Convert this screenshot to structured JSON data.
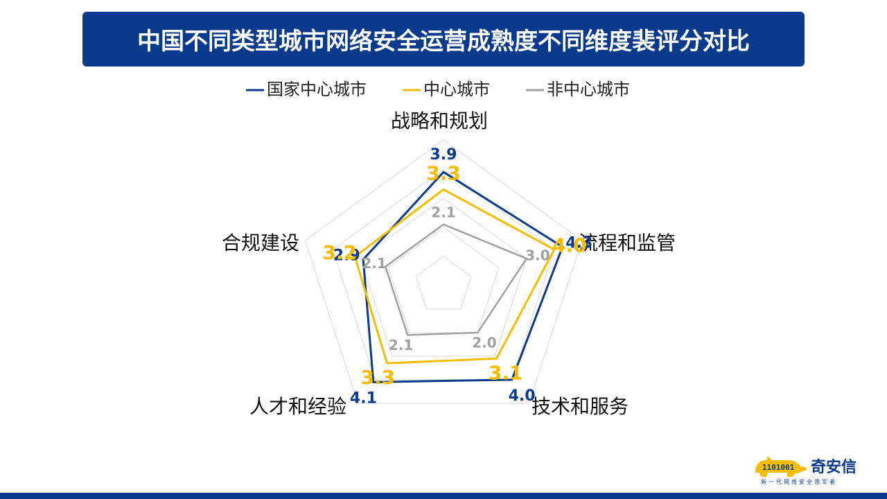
{
  "title": "中国不同类型城市网络安全运营成熟度不同维度裴评分对比",
  "brand": {
    "name": "奇安信",
    "tagline": "新一代网络安全领军者",
    "primary_color": "#0a3a8c"
  },
  "chart_data": {
    "type": "radar",
    "axes": [
      "战略和规划",
      "流程和监管",
      "技术和服务",
      "人才和经验",
      "合规建设"
    ],
    "rmax": 5,
    "grid_levels": 5,
    "legend_position": "top",
    "series": [
      {
        "name": "国家中心城市",
        "color": "#0a3a8c",
        "values": [
          3.9,
          4.3,
          4.0,
          4.1,
          2.9
        ]
      },
      {
        "name": "中心城市",
        "color": "#f5bd00",
        "values": [
          3.3,
          4.0,
          3.1,
          3.3,
          3.2
        ]
      },
      {
        "name": "非中心城市",
        "color": "#a0a0a0",
        "values": [
          2.1,
          3.0,
          2.0,
          2.1,
          2.1
        ]
      }
    ]
  }
}
